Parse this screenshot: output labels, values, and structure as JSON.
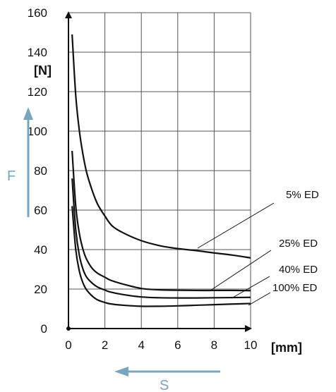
{
  "chart_data": {
    "type": "line",
    "xlim": [
      0,
      10
    ],
    "ylim": [
      0,
      160
    ],
    "x_ticks": [
      0,
      2,
      4,
      6,
      8,
      10
    ],
    "y_ticks": [
      0,
      20,
      40,
      60,
      80,
      100,
      120,
      140,
      160
    ],
    "x_unit": "[mm]",
    "y_unit": "[N]",
    "grid": true,
    "force_axis_label": "F",
    "stroke_axis_label": "S",
    "arrow_color": "#7aa5bf",
    "series": [
      {
        "name": "5% ED",
        "x": [
          0.2,
          0.4,
          0.6,
          0.8,
          1.0,
          1.3,
          1.6,
          2.0,
          2.4,
          3.0,
          4.0,
          5.0,
          6.0,
          7.0,
          8.0,
          9.0,
          10.0
        ],
        "y": [
          149,
          118,
          100,
          88,
          79,
          70,
          63,
          57,
          52,
          48.5,
          44.5,
          42,
          40.5,
          39.5,
          38.3,
          37.2,
          35.8
        ]
      },
      {
        "name": "25% ED",
        "x": [
          0.2,
          0.4,
          0.6,
          0.8,
          1.0,
          1.3,
          1.6,
          2.0,
          2.3,
          3.0,
          4.0,
          5.0,
          6.0,
          7.0,
          8.0,
          9.0,
          10.0
        ],
        "y": [
          90,
          62,
          48,
          40,
          35,
          30.5,
          28,
          26,
          24.5,
          22.5,
          20.3,
          19.6,
          19.4,
          19.3,
          19.3,
          19.3,
          19.2
        ]
      },
      {
        "name": "40% ED",
        "x": [
          0.2,
          0.4,
          0.6,
          0.8,
          1.0,
          1.3,
          1.6,
          2.0,
          2.3,
          3.0,
          4.0,
          5.0,
          6.0,
          7.0,
          8.0,
          9.0,
          10.0
        ],
        "y": [
          76,
          50,
          37,
          30,
          26,
          23,
          21,
          19.5,
          18.5,
          17.2,
          16,
          15.6,
          15.5,
          15.5,
          15.6,
          15.7,
          15.8
        ]
      },
      {
        "name": "100% ED",
        "x": [
          0.2,
          0.4,
          0.6,
          0.8,
          1.0,
          1.3,
          1.6,
          2.0,
          2.3,
          3.0,
          4.0,
          5.0,
          6.0,
          7.0,
          8.0,
          9.0,
          10.0
        ],
        "y": [
          62,
          40,
          29,
          23,
          19.5,
          16.5,
          14.5,
          13.2,
          12.5,
          11.8,
          11.3,
          11.3,
          11.5,
          11.8,
          12.1,
          12.4,
          12.7
        ]
      }
    ]
  }
}
